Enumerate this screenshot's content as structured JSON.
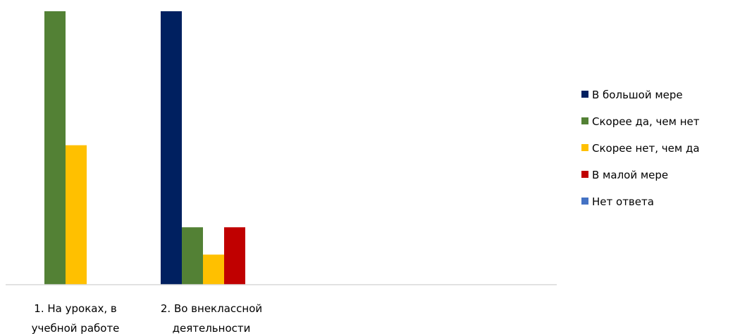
{
  "chart_data": {
    "type": "bar",
    "title": "",
    "xlabel": "",
    "ylabel": "",
    "categories": [
      [
        "1. На уроках, в",
        "учебной работе"
      ],
      [
        "2. Во внеклассной",
        "деятельности"
      ]
    ],
    "series": [
      {
        "name": "В большой мере",
        "color": "#002060",
        "values": [
          0,
          100
        ]
      },
      {
        "name": "Скорее да, чем нет",
        "color": "#538135",
        "values": [
          100,
          21
        ]
      },
      {
        "name": "Скорее нет, чем да",
        "color": "#FFC000",
        "values": [
          51,
          11
        ]
      },
      {
        "name": "В малой мере",
        "color": "#C00000",
        "values": [
          0,
          21
        ]
      },
      {
        "name": "Нет ответа",
        "color": "#4472C4",
        "values": [
          0,
          0
        ]
      }
    ],
    "ylim": [
      0,
      100
    ],
    "grid": false,
    "legend_position": "right"
  }
}
